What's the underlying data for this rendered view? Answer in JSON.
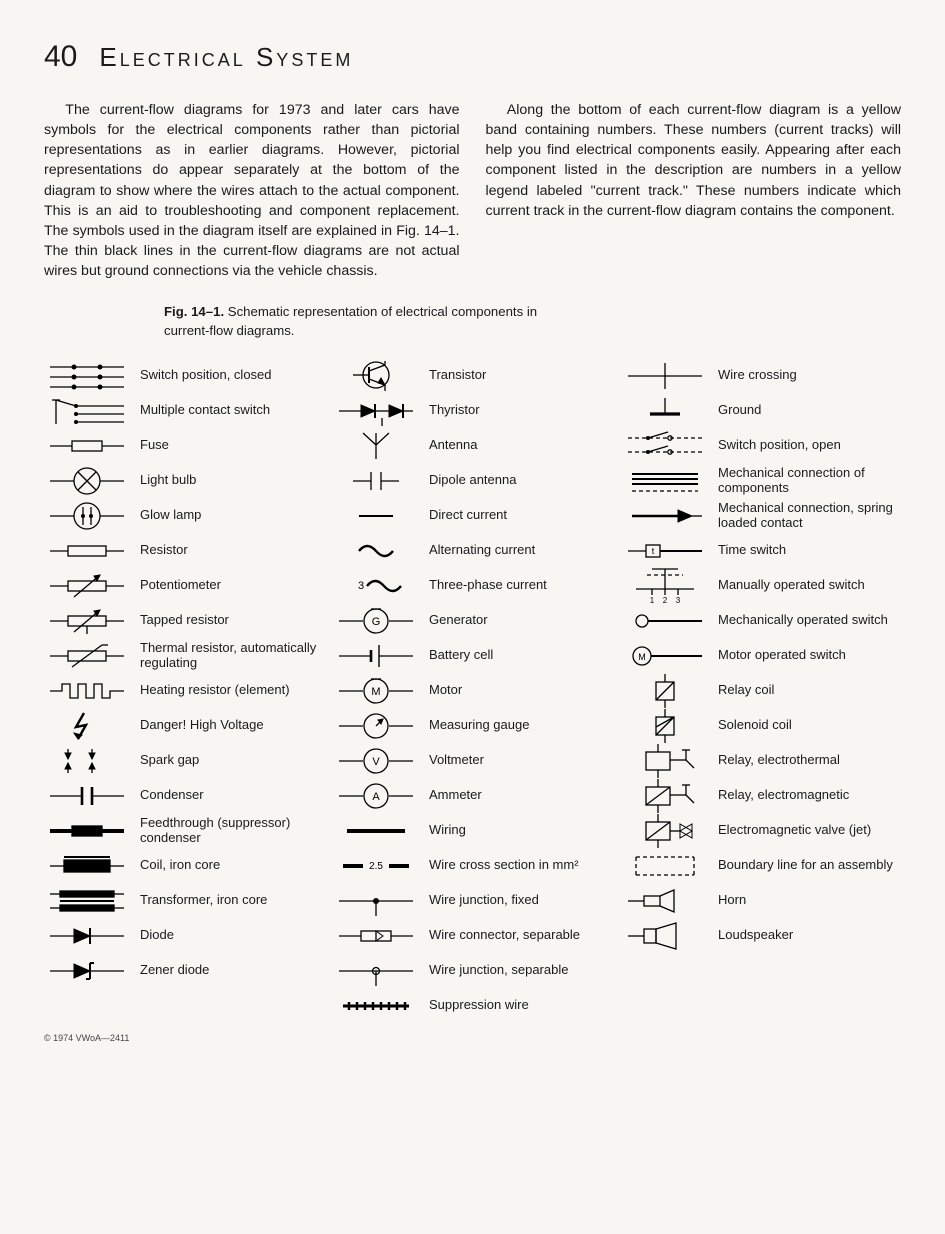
{
  "page_number": "40",
  "title": "Electrical System",
  "paragraphs": {
    "left": "The current-flow diagrams for 1973 and later cars have symbols for the electrical components rather than pictorial representations as in earlier diagrams. However, pictorial representations do appear separately at the bottom of the diagram to show where the wires attach to the actual component. This is an aid to troubleshooting and component replacement. The symbols used in the diagram itself are explained in Fig. 14–1. The thin black lines in the current-flow diagrams are not actual wires but ground connections via the vehicle chassis.",
    "right": "Along the bottom of each current-flow diagram is a yellow band containing numbers. These numbers (current tracks) will help you find electrical components easily. Appearing after each component listed in the description are numbers in a yellow legend labeled \"current track.\" These numbers indicate which current track in the current-flow diagram contains the component."
  },
  "figure": {
    "num": "Fig. 14–1.",
    "caption": "Schematic representation of electrical components in current-flow diagrams."
  },
  "copyright": "© 1974 VWoA—2411",
  "columns": [
    [
      {
        "id": "switch-closed",
        "label": "Switch position, closed"
      },
      {
        "id": "multi-contact-switch",
        "label": "Multiple contact switch"
      },
      {
        "id": "fuse",
        "label": "Fuse"
      },
      {
        "id": "light-bulb",
        "label": "Light bulb"
      },
      {
        "id": "glow-lamp",
        "label": "Glow lamp"
      },
      {
        "id": "resistor",
        "label": "Resistor"
      },
      {
        "id": "potentiometer",
        "label": "Potentiometer"
      },
      {
        "id": "tapped-resistor",
        "label": "Tapped resistor"
      },
      {
        "id": "thermal-resistor",
        "label": "Thermal resistor, automatically regulating"
      },
      {
        "id": "heating-resistor",
        "label": "Heating resistor (element)"
      },
      {
        "id": "high-voltage",
        "label": "Danger! High Voltage"
      },
      {
        "id": "spark-gap",
        "label": "Spark gap"
      },
      {
        "id": "condenser",
        "label": "Condenser"
      },
      {
        "id": "feedthrough-condenser",
        "label": "Feedthrough (suppressor) condenser"
      },
      {
        "id": "coil-iron-core",
        "label": "Coil, iron core"
      },
      {
        "id": "transformer-iron-core",
        "label": "Transformer, iron core"
      },
      {
        "id": "diode",
        "label": "Diode"
      },
      {
        "id": "zener-diode",
        "label": "Zener diode"
      }
    ],
    [
      {
        "id": "transistor",
        "label": "Transistor"
      },
      {
        "id": "thyristor",
        "label": "Thyristor"
      },
      {
        "id": "antenna",
        "label": "Antenna"
      },
      {
        "id": "dipole-antenna",
        "label": "Dipole antenna"
      },
      {
        "id": "direct-current",
        "label": "Direct current"
      },
      {
        "id": "alternating-current",
        "label": "Alternating current"
      },
      {
        "id": "three-phase-current",
        "label": "Three-phase current"
      },
      {
        "id": "generator",
        "label": "Generator"
      },
      {
        "id": "battery-cell",
        "label": "Battery cell"
      },
      {
        "id": "motor",
        "label": "Motor"
      },
      {
        "id": "measuring-gauge",
        "label": "Measuring gauge"
      },
      {
        "id": "voltmeter",
        "label": "Voltmeter"
      },
      {
        "id": "ammeter",
        "label": "Ammeter"
      },
      {
        "id": "wiring",
        "label": "Wiring"
      },
      {
        "id": "wire-cross-section",
        "label": "Wire cross section in mm²"
      },
      {
        "id": "wire-junction-fixed",
        "label": "Wire junction, fixed"
      },
      {
        "id": "wire-connector-separable",
        "label": "Wire connector, separable"
      },
      {
        "id": "wire-junction-separable",
        "label": "Wire junction, separable"
      },
      {
        "id": "suppression-wire",
        "label": "Suppression wire"
      }
    ],
    [
      {
        "id": "wire-crossing",
        "label": "Wire crossing"
      },
      {
        "id": "ground",
        "label": "Ground"
      },
      {
        "id": "switch-open",
        "label": "Switch position, open"
      },
      {
        "id": "mechanical-connection",
        "label": "Mechanical connection of components"
      },
      {
        "id": "mechanical-connection-spring",
        "label": "Mechanical connection, spring loaded contact"
      },
      {
        "id": "time-switch",
        "label": "Time switch"
      },
      {
        "id": "manually-operated-switch",
        "label": "Manually operated switch"
      },
      {
        "id": "mechanically-operated-switch",
        "label": "Mechanically operated switch"
      },
      {
        "id": "motor-operated-switch",
        "label": "Motor operated switch"
      },
      {
        "id": "relay-coil",
        "label": "Relay coil"
      },
      {
        "id": "solenoid-coil",
        "label": "Solenoid coil"
      },
      {
        "id": "relay-electrothermal",
        "label": "Relay, electrothermal"
      },
      {
        "id": "relay-electromagnetic",
        "label": "Relay, electromagnetic"
      },
      {
        "id": "electromagnetic-valve",
        "label": "Electromagnetic valve (jet)"
      },
      {
        "id": "boundary-line",
        "label": "Boundary line for an assembly"
      },
      {
        "id": "horn",
        "label": "Horn"
      },
      {
        "id": "loudspeaker",
        "label": "Loudspeaker"
      }
    ]
  ],
  "style": {
    "stroke": "#000",
    "stroke_thin": 1.3,
    "stroke_thick": 2.4,
    "fill": "#000",
    "bg": "#f7f6f2",
    "font_body": 14.2,
    "font_label": 13
  }
}
